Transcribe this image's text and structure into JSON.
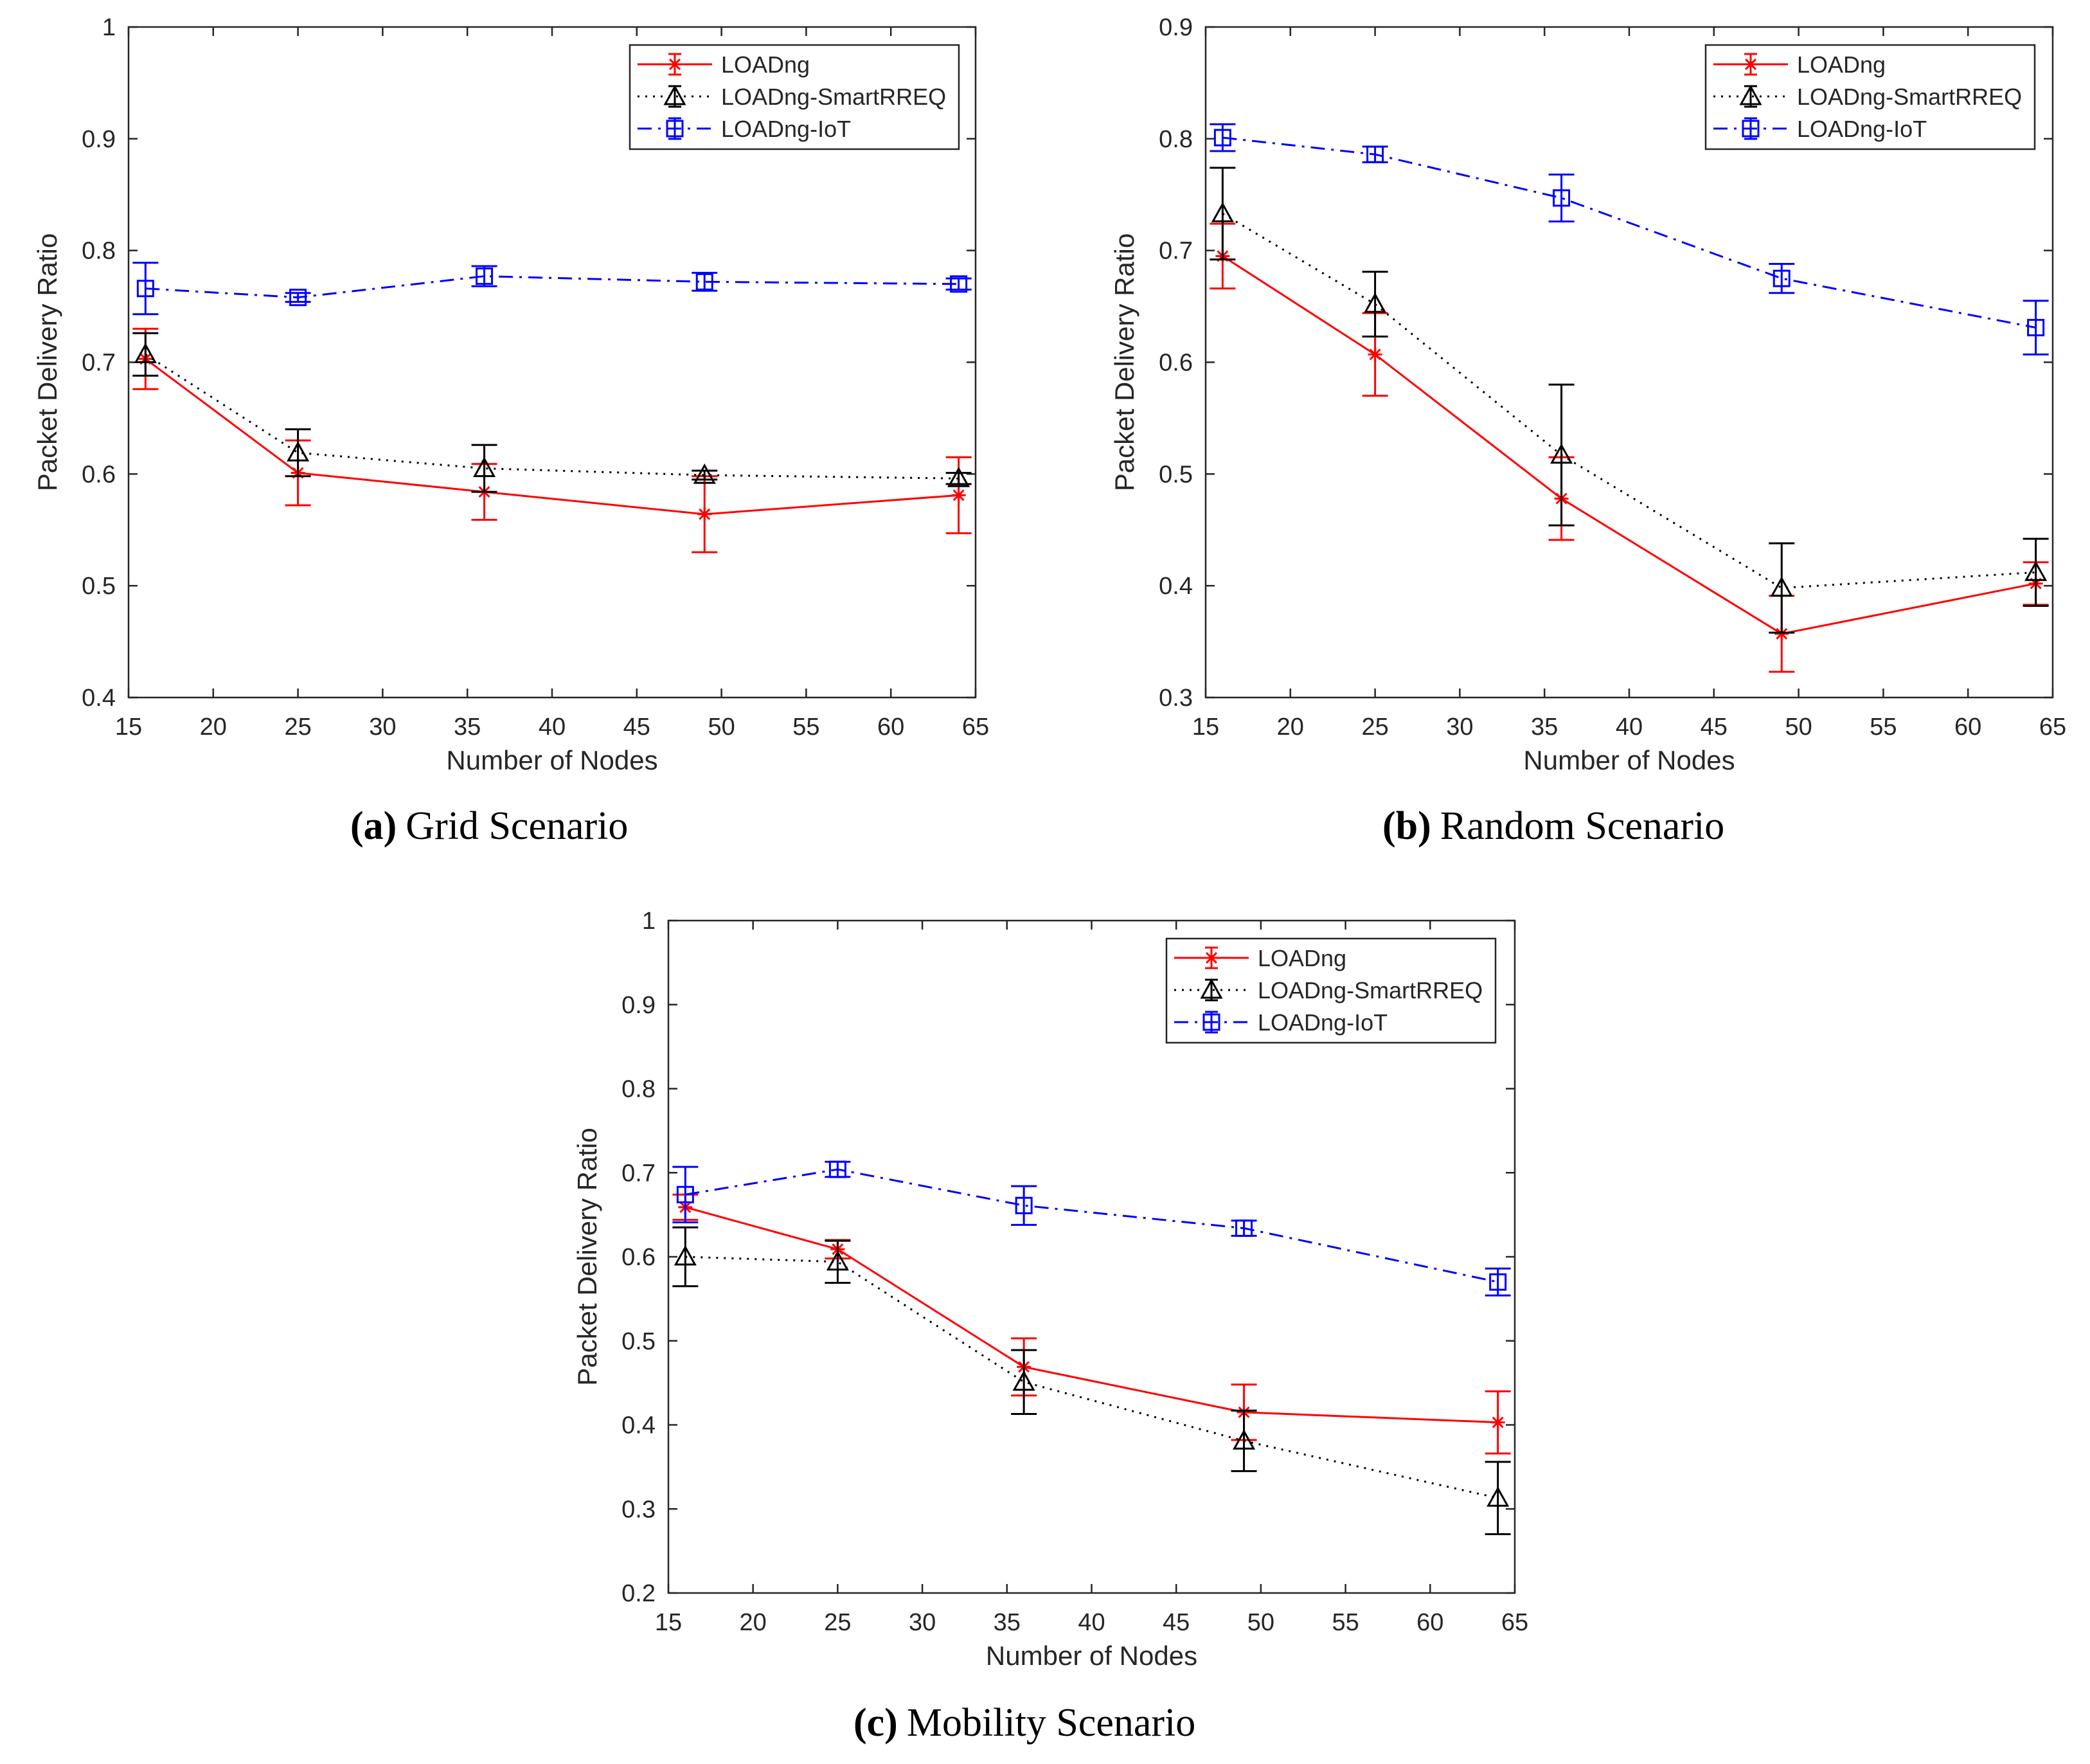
{
  "figure": {
    "panels": [
      {
        "letter": "(a)",
        "text": "Grid Scenario"
      },
      {
        "letter": "(b)",
        "text": "Random Scenario"
      },
      {
        "letter": "(c)",
        "text": "Mobility Scenario"
      }
    ]
  },
  "colors": {
    "LOADng": "#ff0000",
    "LOADng-SmartRREQ": "#000000",
    "LOADng-IoT": "#0000ff",
    "axis": "#262626"
  },
  "chart_data": [
    {
      "type": "line",
      "panel": "a",
      "caption": "(a) Grid Scenario",
      "xlabel": "Number of Nodes",
      "ylabel": "Packet Delivery Ratio",
      "xlim": [
        15,
        65
      ],
      "ylim": [
        0.4,
        1
      ],
      "xticks": [
        15,
        20,
        25,
        30,
        35,
        40,
        45,
        50,
        55,
        60,
        65
      ],
      "yticks": [
        0.4,
        0.5,
        0.6,
        0.7,
        0.8,
        0.9,
        1
      ],
      "ytick_labels": [
        "0.4",
        "0.5",
        "0.6",
        "0.7",
        "0.8",
        "0.9",
        "1"
      ],
      "legend_position": "top-right",
      "x": [
        16,
        25,
        36,
        49,
        64
      ],
      "series": [
        {
          "name": "LOADng",
          "marker": "star",
          "linestyle": "solid",
          "values": [
            0.703,
            0.601,
            0.584,
            0.564,
            0.581
          ],
          "err": [
            0.027,
            0.029,
            0.025,
            0.034,
            0.034
          ]
        },
        {
          "name": "LOADng-SmartRREQ",
          "marker": "triangle",
          "linestyle": "dotted",
          "values": [
            0.707,
            0.619,
            0.605,
            0.599,
            0.596
          ],
          "err": [
            0.019,
            0.021,
            0.021,
            0.004,
            0.005
          ]
        },
        {
          "name": "LOADng-IoT",
          "marker": "square",
          "linestyle": "dashdot",
          "values": [
            0.766,
            0.758,
            0.777,
            0.772,
            0.77
          ],
          "err": [
            0.023,
            0.004,
            0.009,
            0.008,
            0.005
          ]
        }
      ]
    },
    {
      "type": "line",
      "panel": "b",
      "caption": "(b) Random Scenario",
      "xlabel": "Number of Nodes",
      "ylabel": "Packet Delivery Ratio",
      "xlim": [
        15,
        65
      ],
      "ylim": [
        0.3,
        0.9
      ],
      "xticks": [
        15,
        20,
        25,
        30,
        35,
        40,
        45,
        50,
        55,
        60,
        65
      ],
      "yticks": [
        0.3,
        0.4,
        0.5,
        0.6,
        0.7,
        0.8,
        0.9
      ],
      "ytick_labels": [
        "0.3",
        "0.4",
        "0.5",
        "0.6",
        "0.7",
        "0.8",
        "0.9"
      ],
      "legend_position": "top-right",
      "x": [
        16,
        25,
        36,
        49,
        64
      ],
      "series": [
        {
          "name": "LOADng",
          "marker": "star",
          "linestyle": "solid",
          "values": [
            0.695,
            0.607,
            0.478,
            0.357,
            0.402
          ],
          "err": [
            0.029,
            0.037,
            0.037,
            0.034,
            0.019
          ]
        },
        {
          "name": "LOADng-SmartRREQ",
          "marker": "triangle",
          "linestyle": "dotted",
          "values": [
            0.733,
            0.652,
            0.517,
            0.398,
            0.412
          ],
          "err": [
            0.041,
            0.029,
            0.063,
            0.04,
            0.03
          ]
        },
        {
          "name": "LOADng-IoT",
          "marker": "square",
          "linestyle": "dashdot",
          "values": [
            0.801,
            0.786,
            0.747,
            0.675,
            0.631
          ],
          "err": [
            0.012,
            0.007,
            0.021,
            0.013,
            0.024
          ]
        }
      ]
    },
    {
      "type": "line",
      "panel": "c",
      "caption": "(c) Mobility Scenario",
      "xlabel": "Number of Nodes",
      "ylabel": "Packet Delivery Ratio",
      "xlim": [
        15,
        65
      ],
      "ylim": [
        0.2,
        1
      ],
      "xticks": [
        15,
        20,
        25,
        30,
        35,
        40,
        45,
        50,
        55,
        60,
        65
      ],
      "yticks": [
        0.2,
        0.3,
        0.4,
        0.5,
        0.6,
        0.7,
        0.8,
        0.9,
        1
      ],
      "ytick_labels": [
        "0.2",
        "0.3",
        "0.4",
        "0.5",
        "0.6",
        "0.7",
        "0.8",
        "0.9",
        "1"
      ],
      "legend_position": "top-right",
      "x": [
        16,
        25,
        36,
        49,
        64
      ],
      "series": [
        {
          "name": "LOADng",
          "marker": "star",
          "linestyle": "solid",
          "values": [
            0.659,
            0.609,
            0.469,
            0.415,
            0.403
          ],
          "err": [
            0.015,
            0.011,
            0.034,
            0.033,
            0.037
          ]
        },
        {
          "name": "LOADng-SmartRREQ",
          "marker": "triangle",
          "linestyle": "dotted",
          "values": [
            0.6,
            0.594,
            0.451,
            0.381,
            0.313
          ],
          "err": [
            0.035,
            0.025,
            0.038,
            0.036,
            0.043
          ]
        },
        {
          "name": "LOADng-IoT",
          "marker": "square",
          "linestyle": "dashdot",
          "values": [
            0.674,
            0.704,
            0.661,
            0.634,
            0.57
          ],
          "err": [
            0.033,
            0.009,
            0.023,
            0.009,
            0.016
          ]
        }
      ]
    }
  ]
}
